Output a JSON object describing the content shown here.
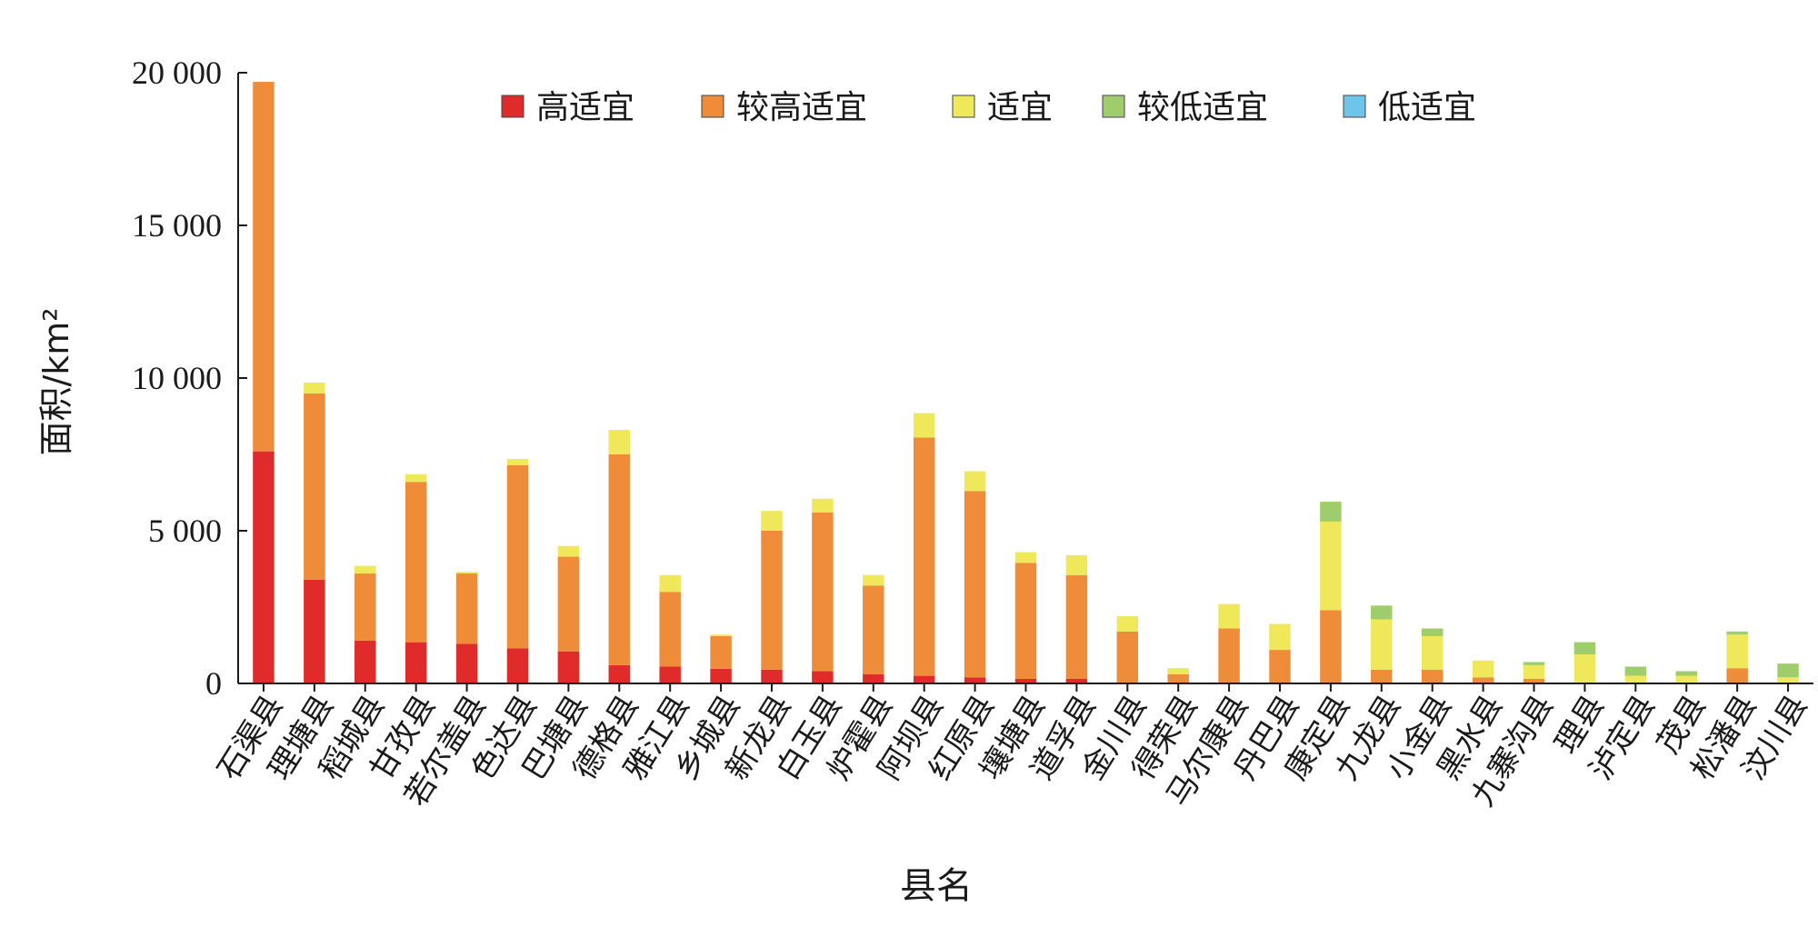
{
  "chart_data": {
    "type": "bar",
    "stacked": true,
    "xlabel": "县名",
    "ylabel": "面积/km²",
    "ylim": [
      0,
      20000
    ],
    "yticks": [
      {
        "value": 0,
        "label": "0"
      },
      {
        "value": 5000,
        "label": "5 000"
      },
      {
        "value": 10000,
        "label": "10 000"
      },
      {
        "value": 15000,
        "label": "15 000"
      },
      {
        "value": 20000,
        "label": "20 000"
      }
    ],
    "grid": false,
    "legend_position": "top",
    "categories": [
      "石渠县",
      "理塘县",
      "稻城县",
      "甘孜县",
      "若尔盖县",
      "色达县",
      "巴塘县",
      "德格县",
      "雅江县",
      "乡城县",
      "新龙县",
      "白玉县",
      "炉霍县",
      "阿坝县",
      "红原县",
      "壤塘县",
      "道孚县",
      "金川县",
      "得荣县",
      "马尔康县",
      "丹巴县",
      "康定县",
      "九龙县",
      "小金县",
      "黑水县",
      "九寨沟县",
      "理县",
      "泸定县",
      "茂县",
      "松潘县",
      "汶川县"
    ],
    "series": [
      {
        "name": "高适宜",
        "color": "#e02b2b",
        "values": [
          7600,
          3400,
          1400,
          1350,
          1300,
          1150,
          1050,
          600,
          550,
          480,
          450,
          400,
          300,
          250,
          200,
          150,
          150,
          0,
          0,
          0,
          0,
          0,
          0,
          0,
          0,
          0,
          0,
          0,
          0,
          0,
          0
        ]
      },
      {
        "name": "较高适宜",
        "color": "#ef8c3a",
        "values": [
          12100,
          6100,
          2200,
          5250,
          2300,
          6000,
          3100,
          6900,
          2450,
          1070,
          4550,
          5200,
          2900,
          7800,
          6100,
          3800,
          3400,
          1700,
          300,
          1800,
          1100,
          2400,
          450,
          450,
          200,
          150,
          0,
          0,
          0,
          500,
          0
        ]
      },
      {
        "name": "适宜",
        "color": "#eee85a",
        "values": [
          0,
          350,
          250,
          250,
          50,
          200,
          350,
          800,
          550,
          50,
          650,
          450,
          350,
          800,
          650,
          350,
          650,
          500,
          200,
          800,
          850,
          2900,
          1650,
          1100,
          550,
          450,
          950,
          250,
          250,
          1100,
          200
        ]
      },
      {
        "name": "较低适宜",
        "color": "#9fcd6b",
        "values": [
          0,
          0,
          0,
          0,
          0,
          0,
          0,
          0,
          0,
          0,
          0,
          0,
          0,
          0,
          0,
          0,
          0,
          0,
          0,
          0,
          0,
          650,
          450,
          250,
          0,
          100,
          400,
          300,
          150,
          100,
          450
        ]
      },
      {
        "name": "低适宜",
        "color": "#6ec5ea",
        "values": [
          0,
          0,
          0,
          0,
          0,
          0,
          0,
          0,
          0,
          0,
          0,
          0,
          0,
          0,
          0,
          0,
          0,
          0,
          0,
          0,
          0,
          0,
          0,
          0,
          0,
          0,
          0,
          0,
          0,
          0,
          0
        ]
      }
    ]
  }
}
